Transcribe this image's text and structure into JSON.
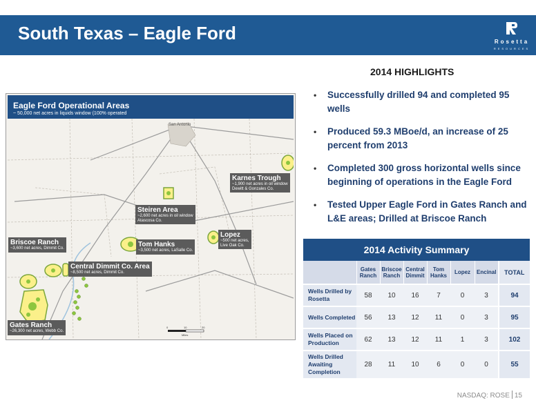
{
  "header": {
    "title": "South Texas – Eagle Ford",
    "logo_word": "Rosetta",
    "logo_sub": "RESOURCES",
    "colors": {
      "bar": "#1f5a94",
      "accent": "#1f3e6e"
    }
  },
  "map": {
    "title": "Eagle Ford Operational Areas",
    "subtitle": "~ 50,000 net acres in liquids window (100% operated",
    "city_label": "San Antonio",
    "labels": [
      {
        "id": "karnes",
        "title": "Karnes Trough",
        "sub1": "~1,900 net acres in oil window",
        "sub2": "Dewitt & Gonzales Co."
      },
      {
        "id": "steiren",
        "title": "Steiren Area",
        "sub1": "~2,600 net acres in oil window",
        "sub2": "Atascosa Co."
      },
      {
        "id": "lopez",
        "title": "Lopez",
        "sub1": "~500 net acres,",
        "sub2": "Live Oak Co."
      },
      {
        "id": "briscoe",
        "title": "Briscoe Ranch",
        "sub1": "~3,600 net acres, Dimmit Co.",
        "sub2": ""
      },
      {
        "id": "tomhanks",
        "title": "Tom Hanks",
        "sub1": "~3,500 net acres, LaSalle Co.",
        "sub2": ""
      },
      {
        "id": "dimmit",
        "title": "Central Dimmit Co. Area",
        "sub1": "~8,500 net acres, Dimmit Co.",
        "sub2": ""
      },
      {
        "id": "gates",
        "title": "Gates Ranch",
        "sub1": "~26,300 net acres, Webb Co.",
        "sub2": ""
      }
    ],
    "scale_labels": [
      "0",
      "10",
      "20"
    ],
    "scale_unit": "Miles"
  },
  "highlights": {
    "heading": "2014 HIGHLIGHTS",
    "items": [
      "Successfully drilled 94 and completed 95 wells",
      "Produced 59.3 MBoe/d, an increase of 25 percent from 2013",
      "Completed 300 gross horizontal wells since beginning of operations in the Eagle Ford",
      "Tested Upper Eagle Ford in Gates Ranch and L&E areas; Drilled at Briscoe Ranch"
    ]
  },
  "activity": {
    "title": "2014  Activity Summary",
    "columns": [
      "Gates Ranch",
      "Briscoe Ranch",
      "Central Dimmit",
      "Tom Hanks",
      "Lopez",
      "Encinal",
      "TOTAL"
    ],
    "rows": [
      {
        "label": "Wells Drilled by Rosetta",
        "values": [
          "58",
          "10",
          "16",
          "7",
          "0",
          "3",
          "94"
        ]
      },
      {
        "label": "Wells Completed",
        "values": [
          "56",
          "13",
          "12",
          "11",
          "0",
          "3",
          "95"
        ]
      },
      {
        "label": "Wells Placed on Production",
        "values": [
          "62",
          "13",
          "12",
          "11",
          "1",
          "3",
          "102"
        ]
      },
      {
        "label": "Wells Drilled Awaiting Completion",
        "values": [
          "28",
          "11",
          "10",
          "6",
          "0",
          "0",
          "55"
        ]
      }
    ]
  },
  "footer": {
    "ticker": "NASDAQ: ROSE",
    "page": "15"
  }
}
